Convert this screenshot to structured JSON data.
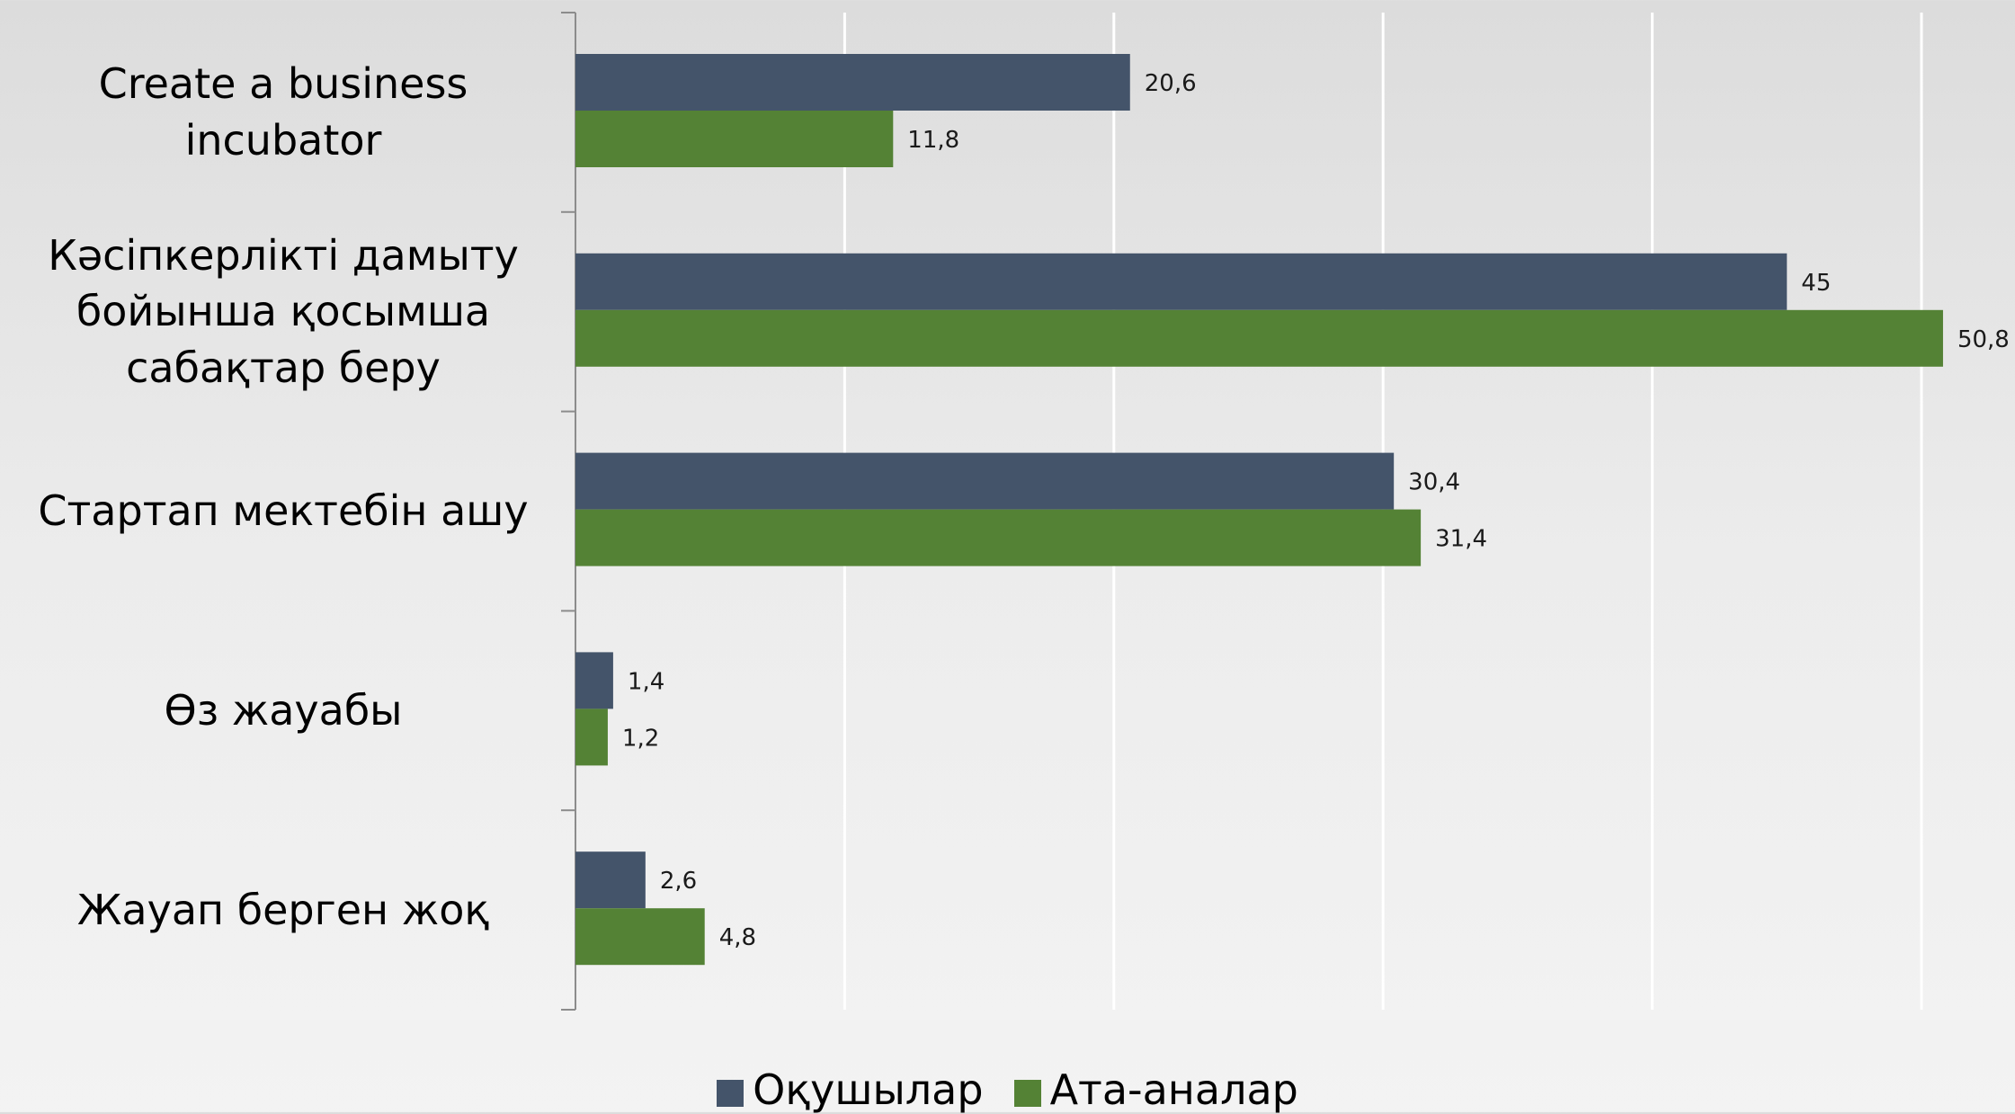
{
  "chart_data": {
    "type": "bar",
    "orientation": "horizontal",
    "categories": [
      "Create a business incubator",
      "Кәсіпкерлікті дамыту бойынша қосымша сабақтар беру",
      "Стартап мектебін ашу",
      "Өз жауабы",
      "Жауап берген жоқ"
    ],
    "series": [
      {
        "name": "Оқушылар",
        "color": "#44546a",
        "values": [
          20.6,
          45,
          30.4,
          1.4,
          2.6
        ],
        "value_labels": [
          "20,6",
          "45",
          "30,4",
          "1,4",
          "2,6"
        ]
      },
      {
        "name": "Ата-аналар",
        "color": "#548235",
        "values": [
          11.8,
          50.8,
          31.4,
          1.2,
          4.8
        ],
        "value_labels": [
          "11,8",
          "50,8",
          "31,4",
          "1,2",
          "4,8"
        ]
      }
    ],
    "xlim": [
      0,
      50
    ],
    "xticks": [
      0,
      10,
      20,
      30,
      40,
      50
    ],
    "grid": true,
    "legend": "bottom"
  }
}
